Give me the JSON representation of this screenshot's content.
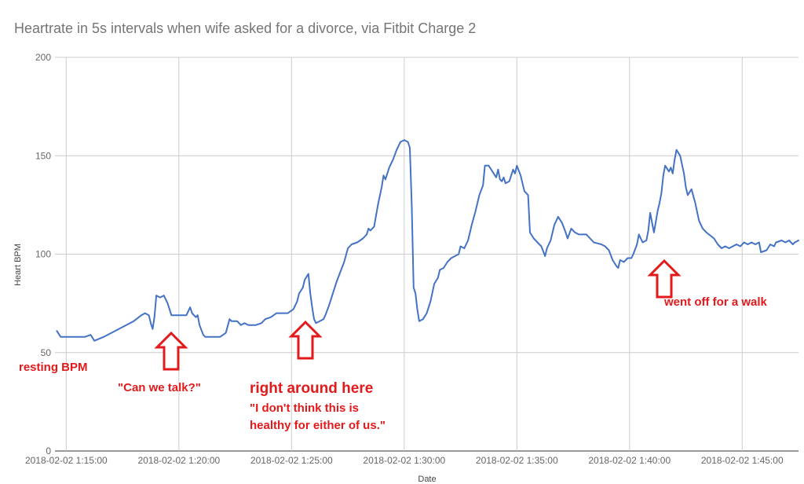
{
  "chart_data": {
    "type": "line",
    "title": "Heartrate in 5s intervals when wife asked for a divorce, via Fitbit Charge 2",
    "xlabel": "Date",
    "ylabel": "Heart BPM",
    "ylim": [
      0,
      200
    ],
    "yticks": [
      "0",
      "50",
      "100",
      "150",
      "200"
    ],
    "xlim": [
      "2018-02-02 1:14:30",
      "2018-02-02 1:47:30"
    ],
    "xticks": [
      {
        "t": "2018-02-02 1:15:00",
        "label": "2018-02-02 1:15:00"
      },
      {
        "t": "2018-02-02 1:20:00",
        "label": "2018-02-02 1:20:00"
      },
      {
        "t": "2018-02-02 1:25:00",
        "label": "2018-02-02 1:25:00"
      },
      {
        "t": "2018-02-02 1:30:00",
        "label": "2018-02-02 1:30:00"
      },
      {
        "t": "2018-02-02 1:35:00",
        "label": "2018-02-02 1:35:00"
      },
      {
        "t": "2018-02-02 1:40:00",
        "label": "2018-02-02 1:40:00"
      },
      {
        "t": "2018-02-02 1:45:00",
        "label": "2018-02-02 1:45:00"
      }
    ],
    "grid": true,
    "line_color": "#4472c4",
    "series": [
      {
        "points": [
          [
            "2018-02-02 1:14:35",
            61
          ],
          [
            "2018-02-02 1:14:45",
            58
          ],
          [
            "2018-02-02 1:15:05",
            58
          ],
          [
            "2018-02-02 1:15:30",
            58
          ],
          [
            "2018-02-02 1:15:50",
            58
          ],
          [
            "2018-02-02 1:16:05",
            59
          ],
          [
            "2018-02-02 1:16:15",
            56
          ],
          [
            "2018-02-02 1:16:40",
            58
          ],
          [
            "2018-02-02 1:17:20",
            62
          ],
          [
            "2018-02-02 1:18:00",
            66
          ],
          [
            "2018-02-02 1:18:20",
            69
          ],
          [
            "2018-02-02 1:18:30",
            70
          ],
          [
            "2018-02-02 1:18:40",
            69
          ],
          [
            "2018-02-02 1:18:45",
            65
          ],
          [
            "2018-02-02 1:18:50",
            62
          ],
          [
            "2018-02-02 1:18:55",
            68
          ],
          [
            "2018-02-02 1:19:00",
            79
          ],
          [
            "2018-02-02 1:19:10",
            78
          ],
          [
            "2018-02-02 1:19:20",
            79
          ],
          [
            "2018-02-02 1:19:30",
            75
          ],
          [
            "2018-02-02 1:19:40",
            69
          ],
          [
            "2018-02-02 1:20:00",
            69
          ],
          [
            "2018-02-02 1:20:20",
            69
          ],
          [
            "2018-02-02 1:20:30",
            73
          ],
          [
            "2018-02-02 1:20:35",
            70
          ],
          [
            "2018-02-02 1:20:45",
            68
          ],
          [
            "2018-02-02 1:20:50",
            69
          ],
          [
            "2018-02-02 1:20:55",
            64
          ],
          [
            "2018-02-02 1:21:05",
            59
          ],
          [
            "2018-02-02 1:21:10",
            58
          ],
          [
            "2018-02-02 1:21:30",
            58
          ],
          [
            "2018-02-02 1:21:50",
            58
          ],
          [
            "2018-02-02 1:22:05",
            60
          ],
          [
            "2018-02-02 1:22:15",
            67
          ],
          [
            "2018-02-02 1:22:20",
            66
          ],
          [
            "2018-02-02 1:22:35",
            66
          ],
          [
            "2018-02-02 1:22:45",
            64
          ],
          [
            "2018-02-02 1:22:55",
            65
          ],
          [
            "2018-02-02 1:23:05",
            64
          ],
          [
            "2018-02-02 1:23:25",
            64
          ],
          [
            "2018-02-02 1:23:40",
            65
          ],
          [
            "2018-02-02 1:23:50",
            67
          ],
          [
            "2018-02-02 1:24:05",
            68
          ],
          [
            "2018-02-02 1:24:20",
            70
          ],
          [
            "2018-02-02 1:24:50",
            70
          ],
          [
            "2018-02-02 1:25:05",
            72
          ],
          [
            "2018-02-02 1:25:15",
            76
          ],
          [
            "2018-02-02 1:25:20",
            80
          ],
          [
            "2018-02-02 1:25:30",
            83
          ],
          [
            "2018-02-02 1:25:35",
            87
          ],
          [
            "2018-02-02 1:25:45",
            90
          ],
          [
            "2018-02-02 1:25:50",
            80
          ],
          [
            "2018-02-02 1:25:55",
            73
          ],
          [
            "2018-02-02 1:26:00",
            67
          ],
          [
            "2018-02-02 1:26:05",
            65
          ],
          [
            "2018-02-02 1:26:15",
            66
          ],
          [
            "2018-02-02 1:26:25",
            67
          ],
          [
            "2018-02-02 1:26:30",
            69
          ],
          [
            "2018-02-02 1:26:40",
            74
          ],
          [
            "2018-02-02 1:26:50",
            80
          ],
          [
            "2018-02-02 1:27:00",
            86
          ],
          [
            "2018-02-02 1:27:10",
            91
          ],
          [
            "2018-02-02 1:27:20",
            96
          ],
          [
            "2018-02-02 1:27:30",
            103
          ],
          [
            "2018-02-02 1:27:40",
            105
          ],
          [
            "2018-02-02 1:27:55",
            106
          ],
          [
            "2018-02-02 1:28:10",
            108
          ],
          [
            "2018-02-02 1:28:20",
            110
          ],
          [
            "2018-02-02 1:28:25",
            113
          ],
          [
            "2018-02-02 1:28:30",
            112
          ],
          [
            "2018-02-02 1:28:40",
            114
          ],
          [
            "2018-02-02 1:28:50",
            125
          ],
          [
            "2018-02-02 1:29:00",
            134
          ],
          [
            "2018-02-02 1:29:05",
            140
          ],
          [
            "2018-02-02 1:29:10",
            138
          ],
          [
            "2018-02-02 1:29:20",
            144
          ],
          [
            "2018-02-02 1:29:30",
            148
          ],
          [
            "2018-02-02 1:29:40",
            153
          ],
          [
            "2018-02-02 1:29:50",
            157
          ],
          [
            "2018-02-02 1:30:00",
            158
          ],
          [
            "2018-02-02 1:30:10",
            157
          ],
          [
            "2018-02-02 1:30:15",
            154
          ],
          [
            "2018-02-02 1:30:20",
            125
          ],
          [
            "2018-02-02 1:30:25",
            83
          ],
          [
            "2018-02-02 1:30:30",
            80
          ],
          [
            "2018-02-02 1:30:35",
            72
          ],
          [
            "2018-02-02 1:30:40",
            66
          ],
          [
            "2018-02-02 1:30:50",
            67
          ],
          [
            "2018-02-02 1:31:00",
            70
          ],
          [
            "2018-02-02 1:31:10",
            76
          ],
          [
            "2018-02-02 1:31:20",
            85
          ],
          [
            "2018-02-02 1:31:30",
            88
          ],
          [
            "2018-02-02 1:31:35",
            92
          ],
          [
            "2018-02-02 1:31:45",
            93
          ],
          [
            "2018-02-02 1:31:55",
            96
          ],
          [
            "2018-02-02 1:32:05",
            98
          ],
          [
            "2018-02-02 1:32:15",
            99
          ],
          [
            "2018-02-02 1:32:25",
            100
          ],
          [
            "2018-02-02 1:32:30",
            104
          ],
          [
            "2018-02-02 1:32:40",
            103
          ],
          [
            "2018-02-02 1:32:50",
            107
          ],
          [
            "2018-02-02 1:33:00",
            115
          ],
          [
            "2018-02-02 1:33:10",
            122
          ],
          [
            "2018-02-02 1:33:20",
            130
          ],
          [
            "2018-02-02 1:33:30",
            135
          ],
          [
            "2018-02-02 1:33:35",
            145
          ],
          [
            "2018-02-02 1:33:45",
            145
          ],
          [
            "2018-02-02 1:33:55",
            142
          ],
          [
            "2018-02-02 1:34:05",
            139
          ],
          [
            "2018-02-02 1:34:10",
            143
          ],
          [
            "2018-02-02 1:34:15",
            138
          ],
          [
            "2018-02-02 1:34:20",
            137
          ],
          [
            "2018-02-02 1:34:25",
            139
          ],
          [
            "2018-02-02 1:34:30",
            136
          ],
          [
            "2018-02-02 1:34:40",
            137
          ],
          [
            "2018-02-02 1:34:50",
            143
          ],
          [
            "2018-02-02 1:34:55",
            141
          ],
          [
            "2018-02-02 1:35:00",
            145
          ],
          [
            "2018-02-02 1:35:10",
            140
          ],
          [
            "2018-02-02 1:35:20",
            132
          ],
          [
            "2018-02-02 1:35:30",
            130
          ],
          [
            "2018-02-02 1:35:35",
            111
          ],
          [
            "2018-02-02 1:35:45",
            108
          ],
          [
            "2018-02-02 1:35:55",
            106
          ],
          [
            "2018-02-02 1:36:05",
            104
          ],
          [
            "2018-02-02 1:36:15",
            99
          ],
          [
            "2018-02-02 1:36:20",
            103
          ],
          [
            "2018-02-02 1:36:30",
            107
          ],
          [
            "2018-02-02 1:36:40",
            115
          ],
          [
            "2018-02-02 1:36:50",
            119
          ],
          [
            "2018-02-02 1:37:00",
            116
          ],
          [
            "2018-02-02 1:37:10",
            111
          ],
          [
            "2018-02-02 1:37:15",
            108
          ],
          [
            "2018-02-02 1:37:25",
            113
          ],
          [
            "2018-02-02 1:37:35",
            111
          ],
          [
            "2018-02-02 1:37:45",
            110
          ],
          [
            "2018-02-02 1:38:05",
            110
          ],
          [
            "2018-02-02 1:38:15",
            108
          ],
          [
            "2018-02-02 1:38:25",
            106
          ],
          [
            "2018-02-02 1:38:45",
            105
          ],
          [
            "2018-02-02 1:38:55",
            104
          ],
          [
            "2018-02-02 1:39:05",
            102
          ],
          [
            "2018-02-02 1:39:15",
            97
          ],
          [
            "2018-02-02 1:39:25",
            94
          ],
          [
            "2018-02-02 1:39:30",
            93
          ],
          [
            "2018-02-02 1:39:35",
            97
          ],
          [
            "2018-02-02 1:39:45",
            96
          ],
          [
            "2018-02-02 1:39:55",
            98
          ],
          [
            "2018-02-02 1:40:05",
            98
          ],
          [
            "2018-02-02 1:40:10",
            100
          ],
          [
            "2018-02-02 1:40:20",
            105
          ],
          [
            "2018-02-02 1:40:25",
            110
          ],
          [
            "2018-02-02 1:40:35",
            106
          ],
          [
            "2018-02-02 1:40:45",
            107
          ],
          [
            "2018-02-02 1:40:50",
            112
          ],
          [
            "2018-02-02 1:40:55",
            121
          ],
          [
            "2018-02-02 1:41:05",
            111
          ],
          [
            "2018-02-02 1:41:15",
            122
          ],
          [
            "2018-02-02 1:41:20",
            126
          ],
          [
            "2018-02-02 1:41:25",
            131
          ],
          [
            "2018-02-02 1:41:30",
            140
          ],
          [
            "2018-02-02 1:41:35",
            145
          ],
          [
            "2018-02-02 1:41:45",
            142
          ],
          [
            "2018-02-02 1:41:50",
            144
          ],
          [
            "2018-02-02 1:41:55",
            141
          ],
          [
            "2018-02-02 1:42:00",
            148
          ],
          [
            "2018-02-02 1:42:05",
            153
          ],
          [
            "2018-02-02 1:42:15",
            150
          ],
          [
            "2018-02-02 1:42:25",
            141
          ],
          [
            "2018-02-02 1:42:30",
            134
          ],
          [
            "2018-02-02 1:42:35",
            130
          ],
          [
            "2018-02-02 1:42:45",
            133
          ],
          [
            "2018-02-02 1:42:55",
            126
          ],
          [
            "2018-02-02 1:43:05",
            117
          ],
          [
            "2018-02-02 1:43:15",
            113
          ],
          [
            "2018-02-02 1:43:25",
            111
          ],
          [
            "2018-02-02 1:43:45",
            108
          ],
          [
            "2018-02-02 1:43:55",
            105
          ],
          [
            "2018-02-02 1:44:05",
            103
          ],
          [
            "2018-02-02 1:44:15",
            104
          ],
          [
            "2018-02-02 1:44:25",
            103
          ],
          [
            "2018-02-02 1:44:35",
            104
          ],
          [
            "2018-02-02 1:44:45",
            105
          ],
          [
            "2018-02-02 1:44:55",
            104
          ],
          [
            "2018-02-02 1:45:05",
            106
          ],
          [
            "2018-02-02 1:45:15",
            105
          ],
          [
            "2018-02-02 1:45:25",
            106
          ],
          [
            "2018-02-02 1:45:35",
            105
          ],
          [
            "2018-02-02 1:45:45",
            106
          ],
          [
            "2018-02-02 1:45:50",
            101
          ],
          [
            "2018-02-02 1:46:05",
            102
          ],
          [
            "2018-02-02 1:46:15",
            105
          ],
          [
            "2018-02-02 1:46:25",
            104
          ],
          [
            "2018-02-02 1:46:30",
            106
          ],
          [
            "2018-02-02 1:46:45",
            107
          ],
          [
            "2018-02-02 1:46:55",
            106
          ],
          [
            "2018-02-02 1:47:05",
            107
          ],
          [
            "2018-02-02 1:47:15",
            105
          ],
          [
            "2018-02-02 1:47:20",
            106
          ],
          [
            "2018-02-02 1:47:30",
            107
          ]
        ]
      }
    ],
    "annotations": [
      {
        "text": "resting BPM",
        "color": "#e31a1c"
      },
      {
        "text": "\"Can we talk?\"",
        "color": "#e31a1c"
      },
      {
        "text": "right around here",
        "color": "#e31a1c"
      },
      {
        "text": "\"I don't think this is",
        "color": "#e31a1c"
      },
      {
        "text": "healthy for either of us.\"",
        "color": "#e31a1c"
      },
      {
        "text": "went off for a walk",
        "color": "#e31a1c"
      }
    ],
    "arrows": [
      {
        "color": "#e31a1c"
      },
      {
        "color": "#e31a1c"
      },
      {
        "color": "#e31a1c"
      }
    ]
  }
}
